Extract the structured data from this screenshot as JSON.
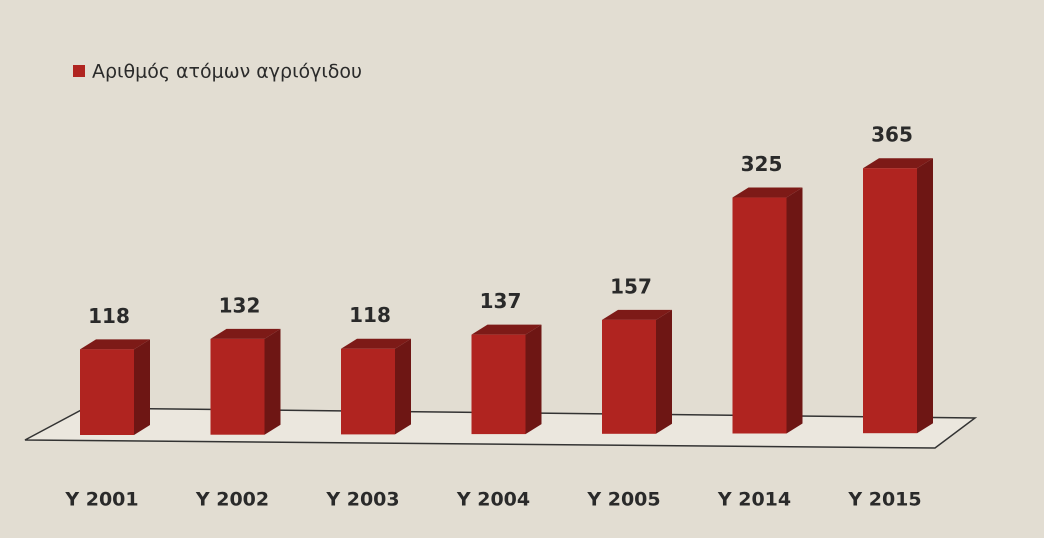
{
  "chart_data": {
    "type": "bar",
    "categories": [
      "Y 2001",
      "Y 2002",
      "Y 2003",
      "Y 2004",
      "Y 2005",
      "Y 2014",
      "Y 2015"
    ],
    "series": [
      {
        "name": "Αριθμός ατόμων αγριόγιδου",
        "color": "#b02420",
        "values": [
          118,
          132,
          118,
          137,
          157,
          325,
          365
        ]
      }
    ]
  }
}
